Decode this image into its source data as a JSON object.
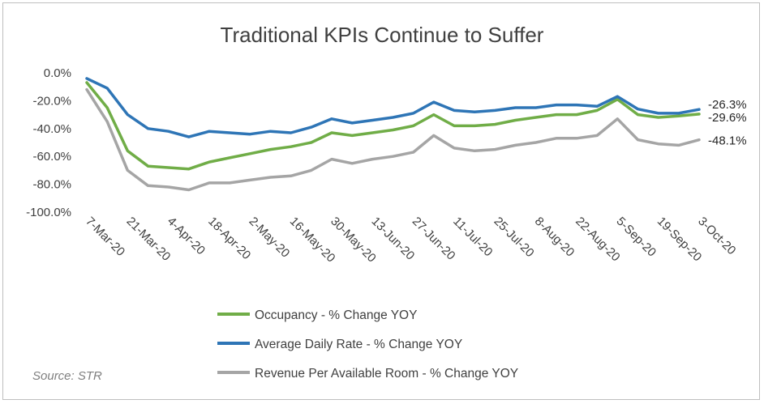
{
  "chart_data": {
    "type": "line",
    "title": "Traditional KPIs Continue to Suffer",
    "xlabel": "",
    "ylabel": "",
    "ylim": [
      -100,
      0
    ],
    "y_ticks": [
      "0.0%",
      "-20.0%",
      "-40.0%",
      "-60.0%",
      "-80.0%",
      "-100.0%"
    ],
    "grid": false,
    "legend_position": "bottom",
    "x": [
      "7-Mar-20",
      "14-Mar-20",
      "21-Mar-20",
      "28-Mar-20",
      "4-Apr-20",
      "11-Apr-20",
      "18-Apr-20",
      "25-Apr-20",
      "2-May-20",
      "9-May-20",
      "16-May-20",
      "23-May-20",
      "30-May-20",
      "6-Jun-20",
      "13-Jun-20",
      "20-Jun-20",
      "27-Jun-20",
      "4-Jul-20",
      "11-Jul-20",
      "18-Jul-20",
      "25-Jul-20",
      "1-Aug-20",
      "8-Aug-20",
      "15-Aug-20",
      "22-Aug-20",
      "29-Aug-20",
      "5-Sep-20",
      "12-Sep-20",
      "19-Sep-20",
      "26-Sep-20",
      "3-Oct-20"
    ],
    "x_tick_labels": [
      "7-Mar-20",
      "21-Mar-20",
      "4-Apr-20",
      "18-Apr-20",
      "2-May-20",
      "16-May-20",
      "30-May-20",
      "13-Jun-20",
      "27-Jun-20",
      "11-Jul-20",
      "25-Jul-20",
      "8-Aug-20",
      "22-Aug-20",
      "5-Sep-20",
      "19-Sep-20",
      "3-Oct-20"
    ],
    "series": [
      {
        "name": "Occupancy - % Change YOY",
        "color": "#70ad47",
        "values": [
          -7,
          -25,
          -56,
          -67,
          -68,
          -69,
          -64,
          -61,
          -58,
          -55,
          -53,
          -50,
          -43,
          -45,
          -43,
          -41,
          -38,
          -30,
          -38,
          -38,
          -37,
          -34,
          -32,
          -30,
          -30,
          -27,
          -19,
          -30,
          -32,
          -31,
          -29.6
        ],
        "end_label": "-29.6%"
      },
      {
        "name": "Average Daily Rate - % Change YOY",
        "color": "#2e75b6",
        "values": [
          -4,
          -11,
          -30,
          -40,
          -42,
          -46,
          -42,
          -43,
          -44,
          -42,
          -43,
          -39,
          -33,
          -36,
          -34,
          -32,
          -29,
          -21,
          -27,
          -28,
          -27,
          -25,
          -25,
          -23,
          -23,
          -24,
          -17,
          -26,
          -29,
          -29,
          -26.3
        ],
        "end_label": "-26.3%"
      },
      {
        "name": "Revenue Per Available Room - % Change YOY",
        "color": "#a5a5a5",
        "values": [
          -12,
          -35,
          -70,
          -81,
          -82,
          -84,
          -79,
          -79,
          -77,
          -75,
          -74,
          -70,
          -62,
          -65,
          -62,
          -60,
          -57,
          -45,
          -54,
          -56,
          -55,
          -52,
          -50,
          -47,
          -47,
          -45,
          -33,
          -48,
          -51,
          -52,
          -48.1
        ],
        "end_label": "-48.1%"
      }
    ]
  },
  "source": "Source: STR"
}
